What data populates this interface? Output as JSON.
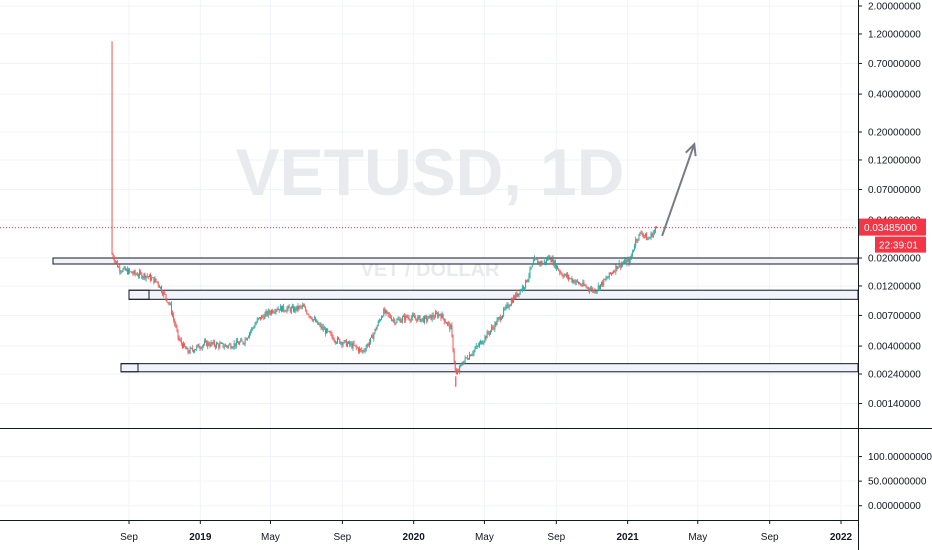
{
  "watermark": {
    "symbol": "VETUSD",
    "interval": "1D",
    "subtitle": "VET / DOLLAR"
  },
  "price_badge": {
    "value": "0.03485000",
    "countdown": "22:39:01",
    "color": "#f23645"
  },
  "colors": {
    "up": "#26a69a",
    "down": "#ef5350",
    "wick_spike": "#ef5350",
    "grid": "#f0f3fa",
    "axis_line": "#131722",
    "zone_fill": "#f0f3fa",
    "zone_stroke": "#131722",
    "arrow": "#787b86",
    "price_line": "#f23645"
  },
  "chart_data": {
    "type": "candlestick",
    "title": "VETUSD, 1D",
    "y_scale": "log",
    "ylim": [
      0.001,
      2.0
    ],
    "price_ticks": [
      "2.00000000",
      "1.20000000",
      "0.70000000",
      "0.40000000",
      "0.20000000",
      "0.12000000",
      "0.07000000",
      "0.04000000",
      "0.02000000",
      "0.01200000",
      "0.00700000",
      "0.00400000",
      "0.00240000",
      "0.00140000"
    ],
    "x_ticks": [
      "Sep",
      "2019",
      "May",
      "Sep",
      "2020",
      "May",
      "Sep",
      "2021",
      "May",
      "Sep",
      "2022"
    ],
    "last_price": 0.03485,
    "ohlc_path": [
      {
        "date": "2018-08-03",
        "price": 0.0215,
        "high": 1.05
      },
      {
        "date": "2018-08-15",
        "price": 0.0165
      },
      {
        "date": "2018-09-10",
        "price": 0.015
      },
      {
        "date": "2018-10-01",
        "price": 0.0145
      },
      {
        "date": "2018-10-20",
        "price": 0.0128
      },
      {
        "date": "2018-11-10",
        "price": 0.0085
      },
      {
        "date": "2018-11-25",
        "price": 0.0045
      },
      {
        "date": "2018-12-10",
        "price": 0.0036
      },
      {
        "date": "2019-01-10",
        "price": 0.0042
      },
      {
        "date": "2019-02-15",
        "price": 0.004
      },
      {
        "date": "2019-03-15",
        "price": 0.0043
      },
      {
        "date": "2019-04-10",
        "price": 0.0065
      },
      {
        "date": "2019-05-10",
        "price": 0.008
      },
      {
        "date": "2019-06-10",
        "price": 0.0078
      },
      {
        "date": "2019-06-25",
        "price": 0.0082
      },
      {
        "date": "2019-07-20",
        "price": 0.006
      },
      {
        "date": "2019-08-20",
        "price": 0.0045
      },
      {
        "date": "2019-09-20",
        "price": 0.004
      },
      {
        "date": "2019-10-05",
        "price": 0.0036
      },
      {
        "date": "2019-10-20",
        "price": 0.0045
      },
      {
        "date": "2019-11-10",
        "price": 0.0075
      },
      {
        "date": "2019-12-01",
        "price": 0.0063
      },
      {
        "date": "2019-12-20",
        "price": 0.0068
      },
      {
        "date": "2020-01-20",
        "price": 0.0065
      },
      {
        "date": "2020-02-15",
        "price": 0.0072
      },
      {
        "date": "2020-03-05",
        "price": 0.0055
      },
      {
        "date": "2020-03-13",
        "price": 0.0023,
        "low": 0.0019
      },
      {
        "date": "2020-03-25",
        "price": 0.003
      },
      {
        "date": "2020-04-20",
        "price": 0.004
      },
      {
        "date": "2020-05-20",
        "price": 0.006
      },
      {
        "date": "2020-06-15",
        "price": 0.009
      },
      {
        "date": "2020-07-10",
        "price": 0.0125
      },
      {
        "date": "2020-07-25",
        "price": 0.019
      },
      {
        "date": "2020-08-10",
        "price": 0.018
      },
      {
        "date": "2020-08-20",
        "price": 0.0205
      },
      {
        "date": "2020-09-10",
        "price": 0.015
      },
      {
        "date": "2020-10-10",
        "price": 0.0125
      },
      {
        "date": "2020-11-05",
        "price": 0.011
      },
      {
        "date": "2020-11-25",
        "price": 0.0135
      },
      {
        "date": "2020-12-15",
        "price": 0.0175
      },
      {
        "date": "2021-01-05",
        "price": 0.019
      },
      {
        "date": "2021-01-15",
        "price": 0.028
      },
      {
        "date": "2021-01-25",
        "price": 0.032
      },
      {
        "date": "2021-02-05",
        "price": 0.028
      },
      {
        "date": "2021-02-20",
        "price": 0.03485
      }
    ],
    "zones": [
      {
        "date_from": "2018-08-03",
        "low": 0.0185,
        "high": 0.02
      },
      {
        "date_from": "2018-08-03",
        "low": 0.0094,
        "high": 0.0111
      },
      {
        "date_from": "2018-08-03",
        "low": 0.0025,
        "high": 0.0029
      }
    ],
    "projection_arrow": {
      "from_date": "2021-03-01",
      "from_price": 0.03,
      "to_date": "2021-04-25",
      "to_price": 0.16
    },
    "lower_pane": {
      "ticks": [
        "100.00000000",
        "50.00000000",
        "0.00000000"
      ],
      "ylim": [
        -25,
        150
      ]
    }
  }
}
